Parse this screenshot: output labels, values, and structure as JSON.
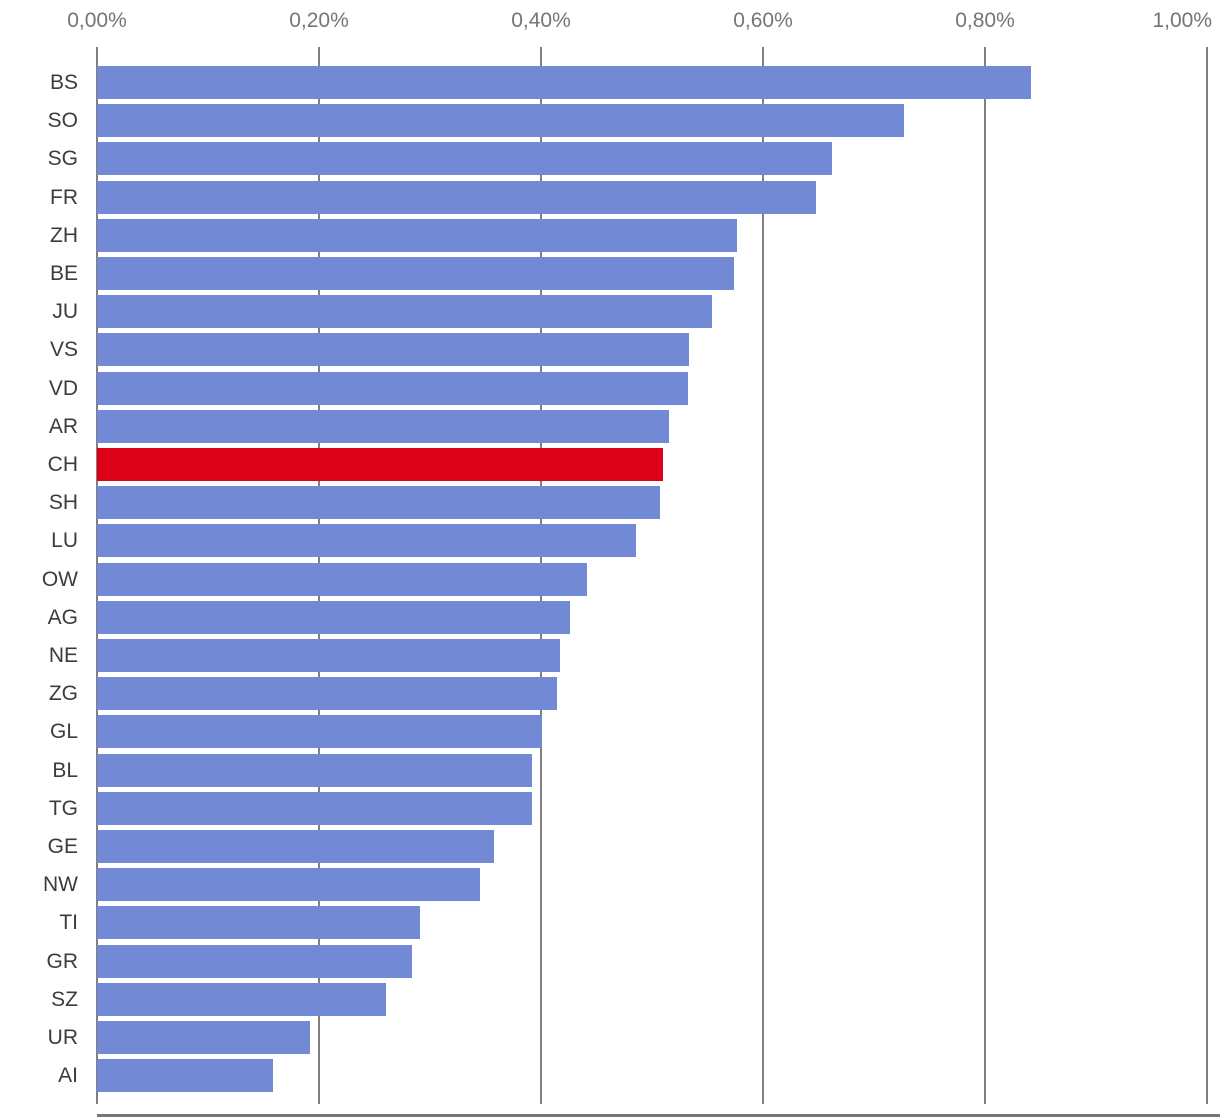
{
  "chart_data": {
    "type": "bar",
    "orientation": "horizontal",
    "title": "",
    "xlabel": "",
    "ylabel": "",
    "legend": "none",
    "grid": true,
    "value_unit": "%",
    "decimal_separator": ",",
    "x_axis": {
      "position": "top",
      "min": 0,
      "max": 1.0,
      "ticks": [
        {
          "label": "0,00%",
          "value": 0.0
        },
        {
          "label": "0,20%",
          "value": 0.2
        },
        {
          "label": "0,40%",
          "value": 0.4
        },
        {
          "label": "0,60%",
          "value": 0.6
        },
        {
          "label": "0,80%",
          "value": 0.8
        },
        {
          "label": "1,00%",
          "value": 1.0
        }
      ]
    },
    "categories": [
      "BS",
      "SO",
      "SG",
      "FR",
      "ZH",
      "BE",
      "JU",
      "VS",
      "VD",
      "AR",
      "CH",
      "SH",
      "LU",
      "OW",
      "AG",
      "NE",
      "ZG",
      "GL",
      "BL",
      "TG",
      "GE",
      "NW",
      "TI",
      "GR",
      "SZ",
      "UR",
      "AI"
    ],
    "values": [
      0.841,
      0.727,
      0.662,
      0.648,
      0.577,
      0.574,
      0.554,
      0.533,
      0.532,
      0.515,
      0.51,
      0.507,
      0.486,
      0.441,
      0.426,
      0.417,
      0.414,
      0.401,
      0.392,
      0.392,
      0.358,
      0.345,
      0.291,
      0.284,
      0.26,
      0.192,
      0.159
    ],
    "highlight": {
      "category": "CH",
      "color": "#dc0019"
    }
  },
  "colors": {
    "bar": "#7289d6",
    "highlight": "#dc0019",
    "gridline": "#808080",
    "tick_text": "#757575",
    "category_text": "#3c3c3c",
    "baseline": "#757575",
    "background": "#ffffff"
  }
}
